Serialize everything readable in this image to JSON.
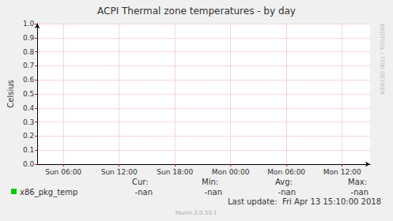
{
  "chart_data": {
    "type": "line",
    "title": "ACPI Thermal zone temperatures - by day",
    "y_label": "Celsius",
    "x": [
      6,
      12,
      18,
      24,
      30,
      36
    ],
    "series": [
      {
        "name": "x86_pkg_temp",
        "color": "#00cc00",
        "values": [
          null,
          null,
          null,
          null,
          null,
          null
        ]
      }
    ],
    "xlim": [
      3.2,
      39.0
    ],
    "xticks": [
      {
        "value": 6,
        "label": "Sun 06:00"
      },
      {
        "value": 12,
        "label": "Sun 12:00"
      },
      {
        "value": 18,
        "label": "Sun 18:00"
      },
      {
        "value": 24,
        "label": "Mon 00:00"
      },
      {
        "value": 30,
        "label": "Mon 06:00"
      },
      {
        "value": 36,
        "label": "Mon 12:00"
      }
    ],
    "ylim": [
      0,
      1
    ],
    "yticks": [
      {
        "value": 0,
        "label": "0.0"
      },
      0.1,
      0.2,
      0.3,
      0.4,
      0.5,
      0.6,
      0.7,
      0.8,
      0.9,
      {
        "value": 1,
        "label": "1.0"
      }
    ],
    "grid": true,
    "stats": {
      "headers": [
        "Cur:",
        "Min:",
        "Avg:",
        "Max:"
      ],
      "rows": [
        {
          "name": "x86_pkg_temp",
          "values": [
            "-nan",
            "-nan",
            "-nan",
            "-nan"
          ]
        }
      ]
    },
    "last_update": "Last update:  Fri Apr 13 15:10:00 2018",
    "footer": "Munin 2.0.33-1",
    "watermark": "RRDTOOL / TOBI OETIKER"
  }
}
